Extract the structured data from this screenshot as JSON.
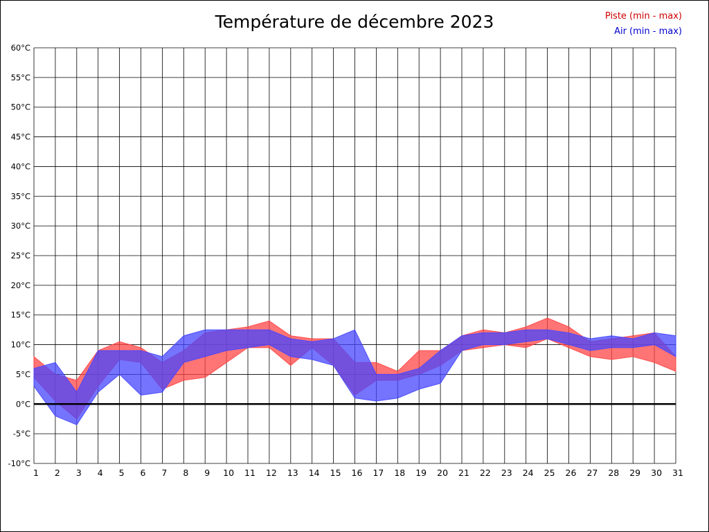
{
  "title": "Température de décembre 2023",
  "legend": {
    "piste": {
      "label": "Piste (min - max)",
      "color": "#cc0000"
    },
    "air": {
      "label": "Air (min - max)",
      "color": "#0000cc"
    }
  },
  "chart_data": {
    "type": "area",
    "title": "Température de décembre 2023",
    "xlabel": "",
    "ylabel": "",
    "y_unit": "°C",
    "ylim": [
      -10,
      60
    ],
    "y_tick_step": 5,
    "grid": true,
    "zero_line": true,
    "legend_position": "top-right",
    "x": [
      1,
      2,
      3,
      4,
      5,
      6,
      7,
      8,
      9,
      10,
      11,
      12,
      13,
      14,
      15,
      16,
      17,
      18,
      19,
      20,
      21,
      22,
      23,
      24,
      25,
      26,
      27,
      28,
      29,
      30,
      31
    ],
    "series": [
      {
        "name": "Piste (min - max)",
        "color": "#ff4545",
        "min": [
          4.5,
          0.5,
          -2.5,
          3,
          7.5,
          7,
          2.5,
          4,
          4.5,
          7,
          9.5,
          9.5,
          6.5,
          9.5,
          6.5,
          1.5,
          4,
          4,
          5,
          6.5,
          9,
          9.5,
          10,
          9.5,
          11,
          9.5,
          8,
          7.5,
          8,
          7,
          5.5
        ],
        "max": [
          8,
          5,
          4,
          9,
          10.5,
          9.5,
          7,
          9,
          12,
          12.5,
          13,
          14,
          11.5,
          11,
          11,
          7,
          7,
          5.5,
          9,
          9,
          11.5,
          12.5,
          12,
          13,
          14.5,
          13,
          10.5,
          11,
          11.5,
          12,
          8
        ]
      },
      {
        "name": "Air (min - max)",
        "color": "#4545ff",
        "min": [
          3,
          -2,
          -3.5,
          2,
          5,
          1.5,
          2,
          7,
          8,
          9,
          9.5,
          10,
          8,
          7.5,
          6.5,
          1,
          0.5,
          1,
          2.5,
          3.5,
          9,
          10,
          10,
          10.5,
          11,
          10,
          9,
          9.5,
          9.5,
          10,
          8
        ],
        "max": [
          6,
          7,
          2,
          9,
          9,
          9,
          8,
          11.5,
          12.5,
          12.5,
          12.5,
          12.5,
          11,
          10.5,
          11,
          12.5,
          5,
          5,
          6,
          9,
          11.5,
          12,
          12,
          12.5,
          12.5,
          12,
          11,
          11.5,
          11,
          12,
          11.5
        ]
      }
    ]
  }
}
